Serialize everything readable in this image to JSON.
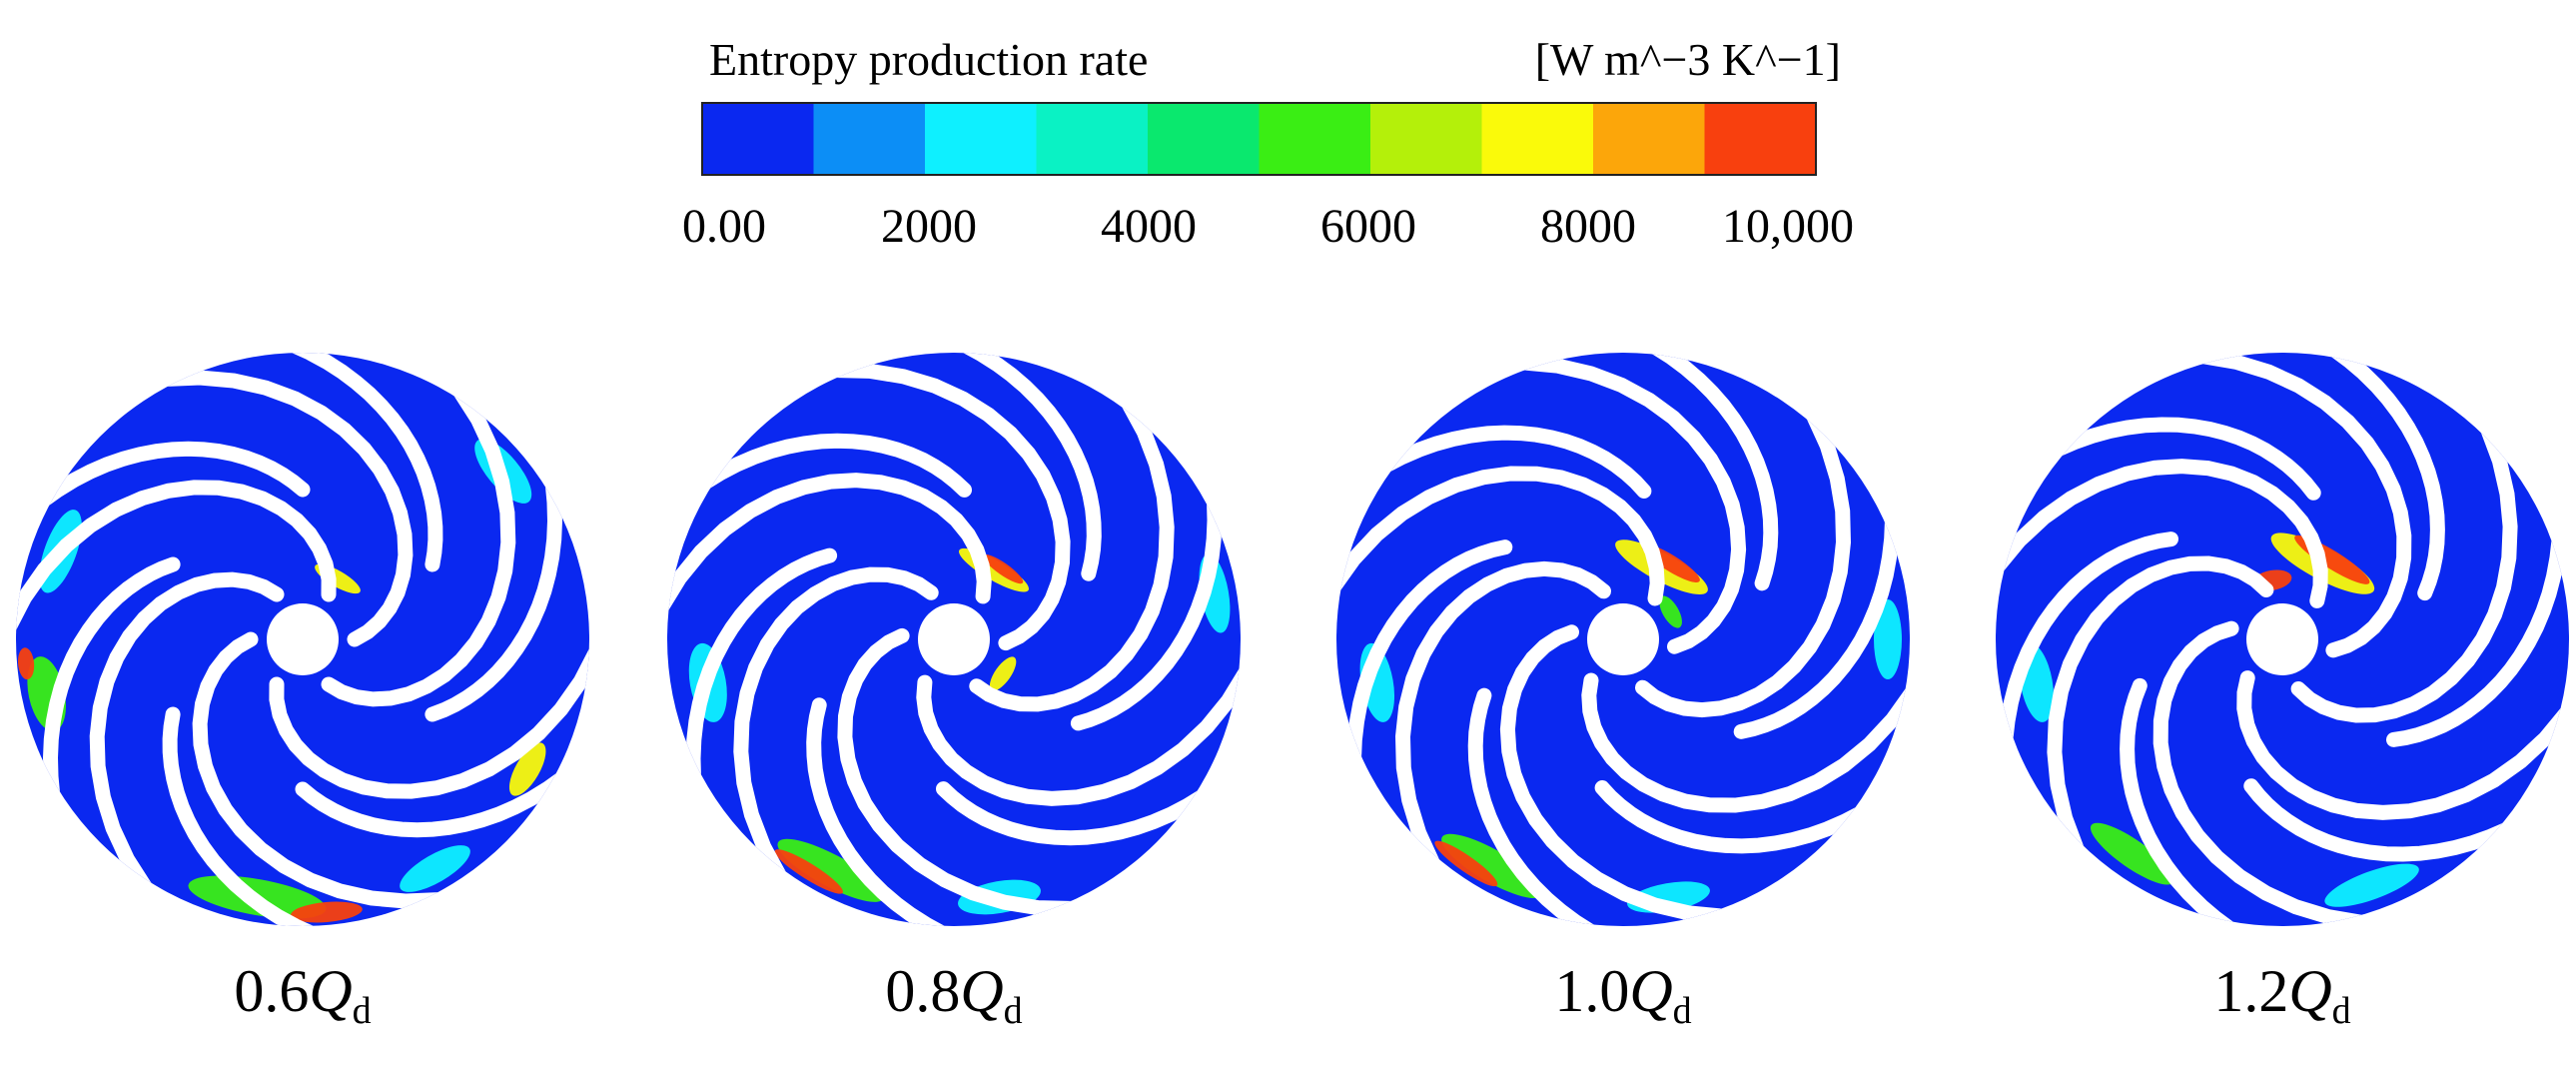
{
  "legend": {
    "title": "Entropy production rate",
    "units": "[W m^−3 K^−1]",
    "colors": [
      "#0a28f0",
      "#0c8ef6",
      "#0ef0ff",
      "#0af2c4",
      "#0ae86e",
      "#3aee14",
      "#b4f00a",
      "#fafa0a",
      "#fca60a",
      "#f8400e"
    ],
    "ticks": [
      "0.00",
      "2000",
      "4000",
      "6000",
      "8000",
      "10,000"
    ]
  },
  "palette": {
    "impeller_blue": "#0a28f0",
    "blade_white": "#ffffff",
    "cyan": "#0ef0ff",
    "green": "#3aee14",
    "yellow": "#fafa0a",
    "red": "#f8400e"
  },
  "panels": [
    {
      "prefix": "0.6",
      "symbol": "Q",
      "subscript": "d"
    },
    {
      "prefix": "0.8",
      "symbol": "Q",
      "subscript": "d"
    },
    {
      "prefix": "1.0",
      "symbol": "Q",
      "subscript": "d"
    },
    {
      "prefix": "1.2",
      "symbol": "Q",
      "subscript": "d"
    }
  ]
}
